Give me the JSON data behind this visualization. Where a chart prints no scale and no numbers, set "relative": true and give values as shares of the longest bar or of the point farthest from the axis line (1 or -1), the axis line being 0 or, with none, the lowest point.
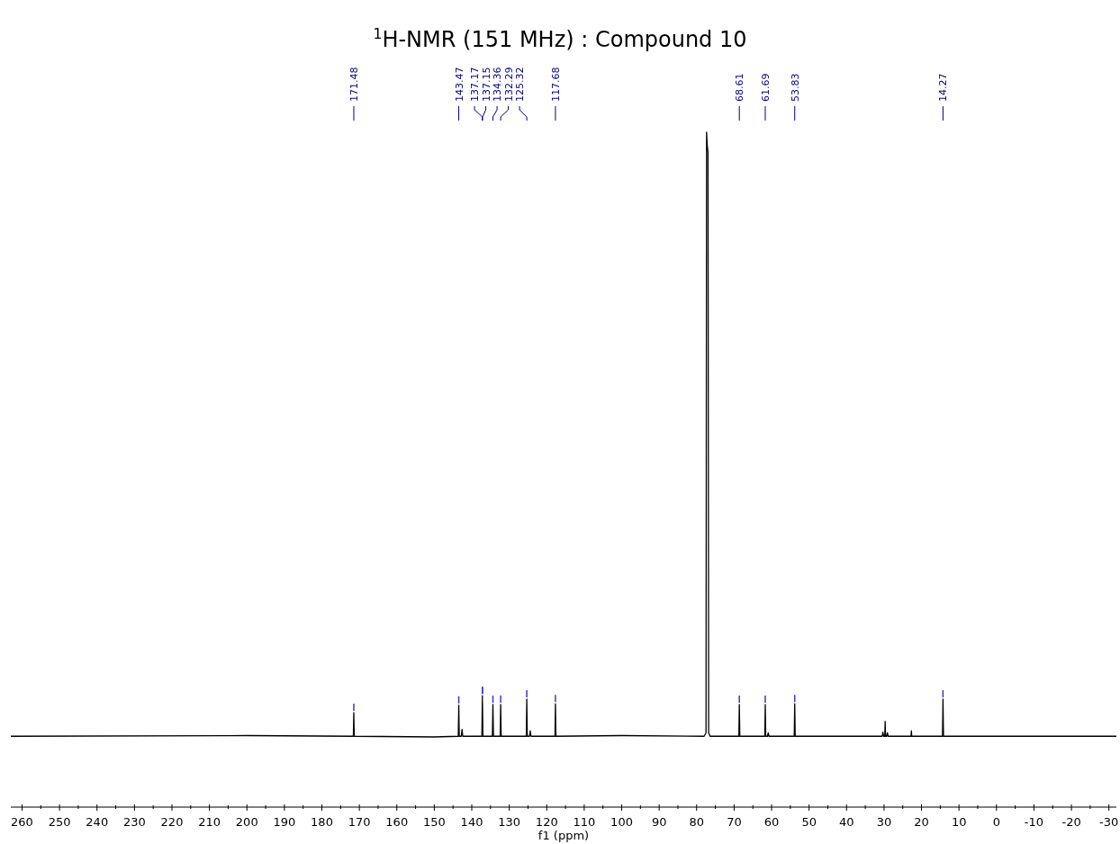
{
  "chart_data": {
    "type": "line",
    "title": "$^{1}$H-NMR (151 MHz) : Compound 10",
    "xlabel": "f1 (ppm)",
    "relative": true,
    "tick_labels": "x",
    "line_style": "solid",
    "xlim": [
      263,
      -32
    ],
    "xticks": [
      260,
      {
        "value": 255,
        "label": null
      },
      250,
      {
        "value": 245,
        "label": null
      },
      240,
      {
        "value": 235,
        "label": null
      },
      230,
      {
        "value": 225,
        "label": null
      },
      220,
      {
        "value": 215,
        "label": null
      },
      210,
      {
        "value": 205,
        "label": null
      },
      200,
      {
        "value": 195,
        "label": null
      },
      190,
      {
        "value": 185,
        "label": null
      },
      180,
      {
        "value": 175,
        "label": null
      },
      170,
      {
        "value": 165,
        "label": null
      },
      160,
      {
        "value": 155,
        "label": null
      },
      150,
      {
        "value": 145,
        "label": null
      },
      140,
      {
        "value": 135,
        "label": null
      },
      130,
      {
        "value": 125,
        "label": null
      },
      120,
      {
        "value": 115,
        "label": null
      },
      110,
      {
        "value": 105,
        "label": null
      },
      100,
      {
        "value": 95,
        "label": null
      },
      90,
      {
        "value": 85,
        "label": null
      },
      80,
      {
        "value": 75,
        "label": null
      },
      70,
      {
        "value": 65,
        "label": null
      },
      60,
      {
        "value": 55,
        "label": null
      },
      50,
      {
        "value": 45,
        "label": null
      },
      40,
      {
        "value": 35,
        "label": null
      },
      30,
      {
        "value": 25,
        "label": null
      },
      20,
      {
        "value": 15,
        "label": null
      },
      10,
      {
        "value": 5,
        "label": null
      },
      0,
      {
        "value": -5,
        "label": null
      },
      -10,
      {
        "value": -15,
        "label": null
      },
      -20,
      {
        "value": -25,
        "label": null
      },
      -30
    ],
    "series": [
      {
        "color": "#000000",
        "x": [
          263,
          200,
          172,
          171.6,
          171.48,
          171.36,
          150,
          143.6,
          143.47,
          143.34,
          142.8,
          142.6,
          142.4,
          137.3,
          137.17,
          137.16,
          137.15,
          137.03,
          134.5,
          134.36,
          134.22,
          132.42,
          132.29,
          132.16,
          125.45,
          125.32,
          125.19,
          124.6,
          124.4,
          124.2,
          117.8,
          117.68,
          117.55,
          100,
          78,
          77.5,
          77.35,
          77.16,
          76.97,
          76.8,
          76.4,
          68.74,
          68.61,
          68.48,
          61.82,
          61.69,
          61.56,
          61.1,
          60.9,
          60.7,
          53.96,
          53.83,
          53.7,
          30.5,
          30.3,
          30.1,
          29.8,
          29.7,
          29.6,
          29.3,
          29.1,
          28.9,
          22.8,
          22.7,
          22.6,
          14.4,
          14.27,
          14.14,
          -32
        ],
        "values": [
          0.105,
          0.106,
          0.105,
          0.105,
          0.14,
          0.105,
          0.104,
          0.105,
          0.151,
          0.105,
          0.105,
          0.115,
          0.105,
          0.105,
          0.165,
          0.12,
          0.155,
          0.105,
          0.105,
          0.152,
          0.105,
          0.105,
          0.152,
          0.105,
          0.105,
          0.16,
          0.105,
          0.105,
          0.113,
          0.105,
          0.105,
          0.153,
          0.105,
          0.106,
          0.105,
          0.11,
          1.0,
          0.98,
          0.97,
          0.11,
          0.105,
          0.105,
          0.152,
          0.105,
          0.105,
          0.152,
          0.105,
          0.105,
          0.11,
          0.105,
          0.105,
          0.153,
          0.105,
          0.105,
          0.111,
          0.105,
          0.105,
          0.127,
          0.105,
          0.105,
          0.11,
          0.105,
          0.105,
          0.113,
          0.105,
          0.105,
          0.16,
          0.105,
          0.105
        ]
      }
    ],
    "annotations": [
      {
        "text": "171.48",
        "x": 171.48
      },
      {
        "text": "143.47",
        "x": 143.47
      },
      {
        "text": "137.17",
        "x": 137.17
      },
      {
        "text": "137.15",
        "x": 137.15
      },
      {
        "text": "134.36",
        "x": 134.36
      },
      {
        "text": "132.29",
        "x": 132.29
      },
      {
        "text": "125.32",
        "x": 125.32
      },
      {
        "text": "117.68",
        "x": 117.68
      },
      {
        "text": "68.61",
        "x": 68.61
      },
      {
        "text": "61.69",
        "x": 61.69
      },
      {
        "text": "53.83",
        "x": 53.83
      },
      {
        "text": "14.27",
        "x": 14.27
      }
    ]
  }
}
